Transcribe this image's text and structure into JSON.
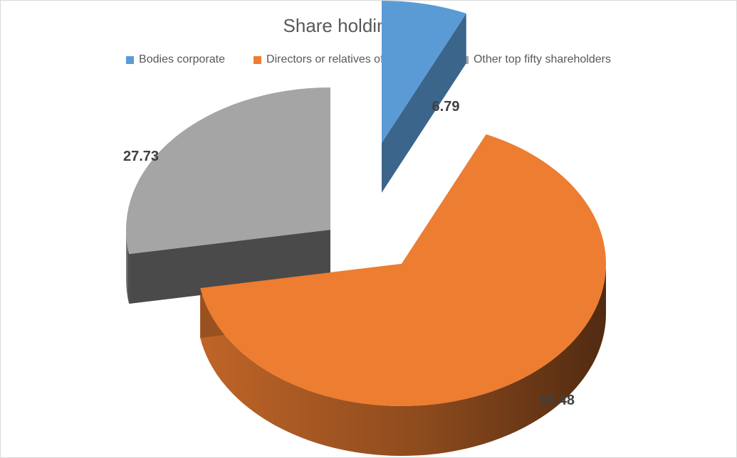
{
  "chart_data": {
    "type": "pie",
    "title": "Share holding patten",
    "legend_position": "top",
    "categories": [
      "Bodies corporate",
      "Directors or relatives of Directors",
      "Other top fifty shareholders"
    ],
    "values": [
      6.79,
      65.48,
      27.73
    ],
    "data_labels": [
      "6.79",
      "65.48",
      "27.73"
    ],
    "colors": [
      "#5B9BD5",
      "#ED7D31",
      "#A5A5A5"
    ]
  }
}
